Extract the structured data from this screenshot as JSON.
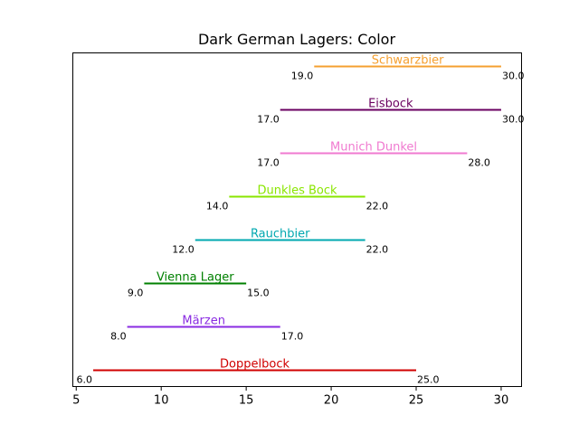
{
  "chart_data": {
    "type": "range",
    "title": "Dark German Lagers: Color",
    "xlabel": "",
    "ylabel": "",
    "xlim": [
      4.8,
      31.2
    ],
    "xticks": [
      5,
      10,
      15,
      20,
      25,
      30
    ],
    "grid": false,
    "legend": "none",
    "series": [
      {
        "name": "Doppelbock",
        "low": 6.0,
        "high": 25.0,
        "low_label": "6.0",
        "high_label": "25.0",
        "color": "#d00000"
      },
      {
        "name": "Märzen",
        "low": 8.0,
        "high": 17.0,
        "low_label": "8.0",
        "high_label": "17.0",
        "color": "#8a2be2"
      },
      {
        "name": "Vienna Lager",
        "low": 9.0,
        "high": 15.0,
        "low_label": "9.0",
        "high_label": "15.0",
        "color": "#008000"
      },
      {
        "name": "Rauchbier",
        "low": 12.0,
        "high": 22.0,
        "low_label": "12.0",
        "high_label": "22.0",
        "color": "#00a8b0"
      },
      {
        "name": "Dunkles Bock",
        "low": 14.0,
        "high": 22.0,
        "low_label": "14.0",
        "high_label": "22.0",
        "color": "#8ae600"
      },
      {
        "name": "Munich Dunkel",
        "low": 17.0,
        "high": 28.0,
        "low_label": "17.0",
        "high_label": "28.0",
        "color": "#f07ad0"
      },
      {
        "name": "Eisbock",
        "low": 17.0,
        "high": 30.0,
        "low_label": "17.0",
        "high_label": "30.0",
        "color": "#6a0060"
      },
      {
        "name": "Schwarzbier",
        "low": 19.0,
        "high": 30.0,
        "low_label": "19.0",
        "high_label": "30.0",
        "color": "#f5a030"
      }
    ]
  }
}
